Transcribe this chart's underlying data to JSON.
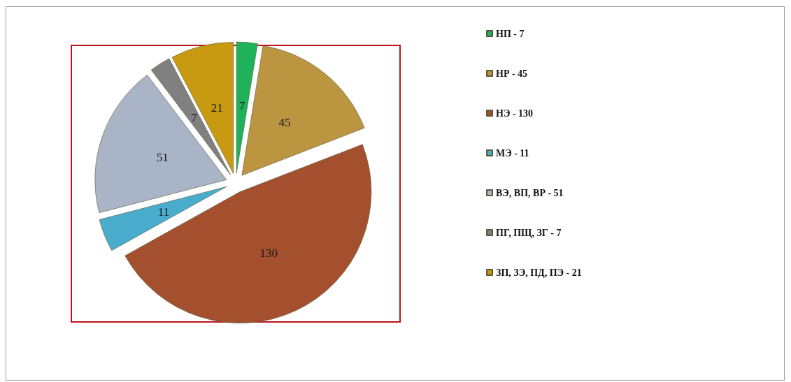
{
  "chart_data": {
    "type": "pie",
    "categories": [
      "НП - 7",
      "НР - 45",
      "НЭ - 130",
      "МЭ - 11",
      "ВЭ, ВП, ВР - 51",
      "ПГ, ПЩ, ЗГ - 7",
      "ЗП, ЗЭ, ПД, ПЭ - 21"
    ],
    "values": [
      7,
      45,
      130,
      11,
      51,
      7,
      21
    ],
    "colors": [
      "#1fb25a",
      "#bb9540",
      "#a4502f",
      "#4aaccd",
      "#aab4c7",
      "#808080",
      "#c89a12"
    ],
    "data_labels": true,
    "legend": "right"
  }
}
